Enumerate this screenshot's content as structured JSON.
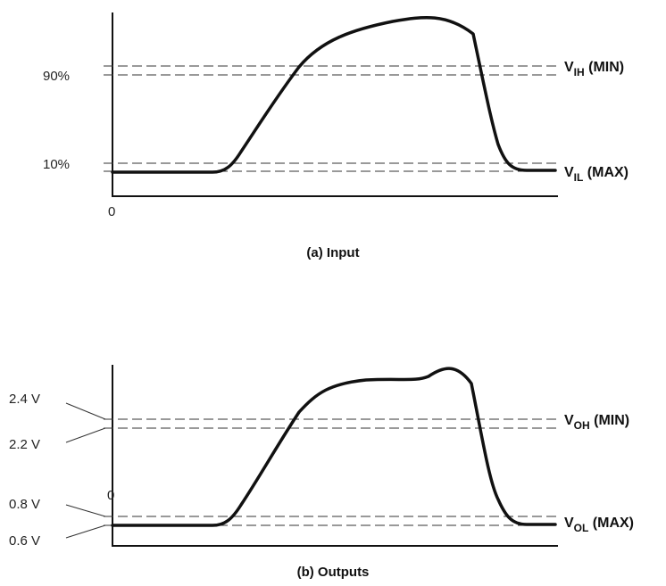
{
  "input_panel": {
    "caption": "(a) Input",
    "pct_90": "90%",
    "pct_10": "10%",
    "origin": "0",
    "vih_main": "V",
    "vih_sub": "IH",
    "vih_suffix": " (MIN)",
    "vil_main": "V",
    "vil_sub": "IL",
    "vil_suffix": " (MAX)"
  },
  "output_panel": {
    "caption": "(b) Outputs",
    "v_2_4": "2.4 V",
    "v_2_2": "2.2 V",
    "v_0_8": "0.8 V",
    "v_0_6": "0.6 V",
    "origin": "0",
    "voh_main": "V",
    "voh_sub": "OH",
    "voh_suffix": " (MIN)",
    "vol_main": "V",
    "vol_sub": "OL",
    "vol_suffix": " (MAX)"
  }
}
